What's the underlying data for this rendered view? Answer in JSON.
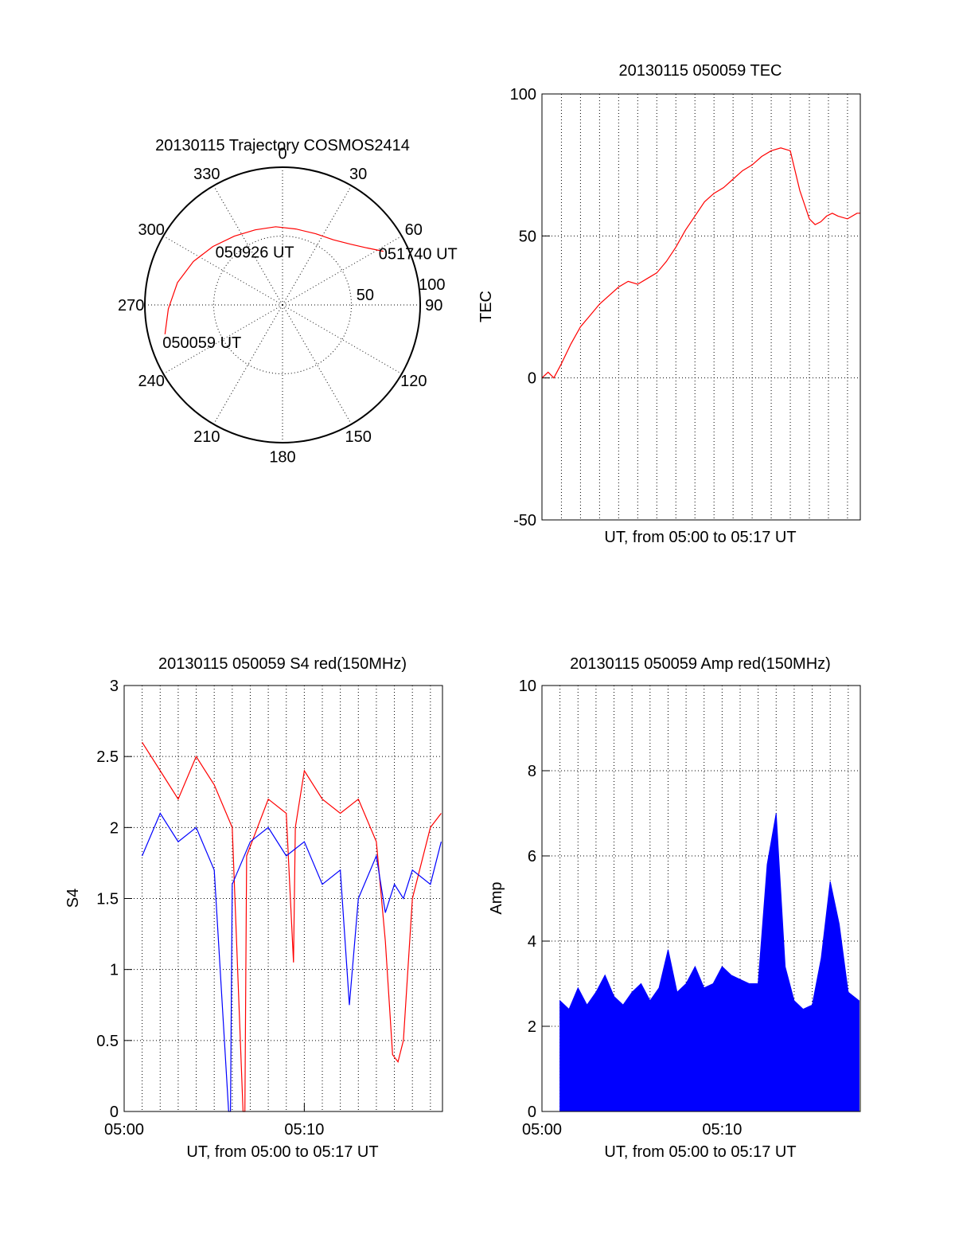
{
  "chart_data": [
    {
      "type": "polar-trajectory",
      "title": "20130115 Trajectory COSMOS2414",
      "azimuth_labels": [
        "0",
        "30",
        "60",
        "90",
        "120",
        "150",
        "180",
        "210",
        "240",
        "270",
        "300",
        "330"
      ],
      "radial_labels": [
        "50",
        "100"
      ],
      "r_max": 100,
      "trajectory_color": "#ff0000",
      "trajectory": {
        "azimuth_deg": [
          256,
          268,
          282,
          296,
          310,
          325,
          340,
          355,
          10,
          25,
          38,
          48,
          56,
          62
        ],
        "zenith": [
          88,
          83,
          78,
          72,
          66,
          61,
          58,
          57,
          56,
          57,
          60,
          66,
          74,
          83
        ]
      },
      "annotations": [
        {
          "text": "050059 UT",
          "azimuth_deg": 256,
          "zenith": 88
        },
        {
          "text": "050926 UT",
          "azimuth_deg": 340,
          "zenith": 58
        },
        {
          "text": "051740 UT",
          "azimuth_deg": 62,
          "zenith": 83
        }
      ]
    },
    {
      "type": "line",
      "title": "20130115 050059 TEC",
      "xlabel": "UT, from 05:00 to 05:17 UT",
      "ylabel": "TEC",
      "xlim": [
        0.98,
        17.67
      ],
      "ylim": [
        -50,
        100
      ],
      "yticks": [
        "-50",
        "0",
        "50",
        "100"
      ],
      "grid": true,
      "series": [
        {
          "color": "#ff0000",
          "x": [
            0.98,
            1.3,
            1.6,
            2.0,
            2.5,
            3.0,
            3.5,
            4.0,
            4.5,
            5.0,
            5.5,
            6.0,
            6.5,
            7.0,
            7.5,
            8.0,
            8.5,
            9.0,
            9.5,
            10.0,
            10.5,
            11.0,
            11.5,
            12.0,
            12.5,
            13.0,
            13.5,
            14.0,
            14.5,
            15.0,
            15.3,
            15.6,
            15.9,
            16.2,
            16.5,
            17.0,
            17.5,
            17.67
          ],
          "y": [
            0,
            2,
            0,
            5,
            12,
            18,
            22,
            26,
            29,
            32,
            34,
            33,
            35,
            37,
            41,
            46,
            52,
            57,
            62,
            65,
            67,
            70,
            73,
            75,
            78,
            80,
            81,
            80,
            66,
            56,
            54,
            55,
            57,
            58,
            57,
            56,
            58,
            58
          ]
        }
      ]
    },
    {
      "type": "line",
      "title": "20130115 050059 S4 red(150MHz)",
      "xlabel": "UT, from 05:00 to 05:17 UT",
      "ylabel": "S4",
      "xlim": [
        0,
        17.67
      ],
      "ylim": [
        0,
        3
      ],
      "yticks": [
        "0",
        "0.5",
        "1",
        "1.5",
        "2",
        "2.5",
        "3"
      ],
      "xticks": [
        {
          "value": 0,
          "label": "05:00"
        },
        {
          "value": 10,
          "label": "05:10"
        }
      ],
      "grid": true,
      "series": [
        {
          "color": "#ff0000",
          "x": [
            1.0,
            2.0,
            3.0,
            4.0,
            5.0,
            6.0,
            6.6,
            6.7,
            6.8,
            8.0,
            9.0,
            9.4,
            9.5,
            10.0,
            11.0,
            12.0,
            13.0,
            14.0,
            14.5,
            14.9,
            15.2,
            15.5,
            16.0,
            17.0,
            17.6
          ],
          "y": [
            2.6,
            2.4,
            2.2,
            2.5,
            2.3,
            2.0,
            0.0,
            0.0,
            1.8,
            2.2,
            2.1,
            1.05,
            2.0,
            2.4,
            2.2,
            2.1,
            2.2,
            1.9,
            1.2,
            0.4,
            0.35,
            0.5,
            1.5,
            2.0,
            2.1
          ]
        },
        {
          "color": "#0000ff",
          "x": [
            1.0,
            2.0,
            3.0,
            4.0,
            5.0,
            5.8,
            5.9,
            6.0,
            7.0,
            8.0,
            9.0,
            10.0,
            11.0,
            12.0,
            12.5,
            13.0,
            14.0,
            14.5,
            15.0,
            15.5,
            16.0,
            17.0,
            17.6
          ],
          "y": [
            1.8,
            2.1,
            1.9,
            2.0,
            1.7,
            0.0,
            0.0,
            1.6,
            1.9,
            2.0,
            1.8,
            1.9,
            1.6,
            1.7,
            0.75,
            1.5,
            1.8,
            1.4,
            1.6,
            1.5,
            1.7,
            1.6,
            1.9
          ]
        }
      ]
    },
    {
      "type": "bar",
      "title": "20130115 050059 Amp red(150MHz)",
      "xlabel": "UT, from 05:00 to 05:17 UT",
      "ylabel": "Amp",
      "xlim": [
        0,
        17.67
      ],
      "ylim": [
        0,
        10
      ],
      "yticks": [
        "0",
        "2",
        "4",
        "6",
        "8",
        "10"
      ],
      "xticks": [
        {
          "value": 0,
          "label": "05:00"
        },
        {
          "value": 10,
          "label": "05:10"
        }
      ],
      "grid": true,
      "series": [
        {
          "color": "#0000ff",
          "x": [
            1.0,
            1.5,
            2.0,
            2.5,
            3.0,
            3.5,
            4.0,
            4.5,
            5.0,
            5.5,
            6.0,
            6.5,
            7.0,
            7.5,
            8.0,
            8.5,
            9.0,
            9.5,
            10.0,
            10.5,
            11.0,
            11.5,
            12.0,
            12.5,
            13.0,
            13.5,
            14.0,
            14.5,
            15.0,
            15.5,
            16.0,
            16.5,
            17.0,
            17.6
          ],
          "y": [
            2.6,
            2.4,
            2.9,
            2.5,
            2.8,
            3.2,
            2.7,
            2.5,
            2.8,
            3.0,
            2.6,
            2.9,
            3.8,
            2.8,
            3.0,
            3.4,
            2.9,
            3.0,
            3.4,
            3.2,
            3.1,
            3.0,
            3.0,
            5.8,
            7.0,
            3.4,
            2.6,
            2.4,
            2.5,
            3.6,
            5.4,
            4.4,
            2.8,
            2.6
          ]
        }
      ]
    }
  ]
}
